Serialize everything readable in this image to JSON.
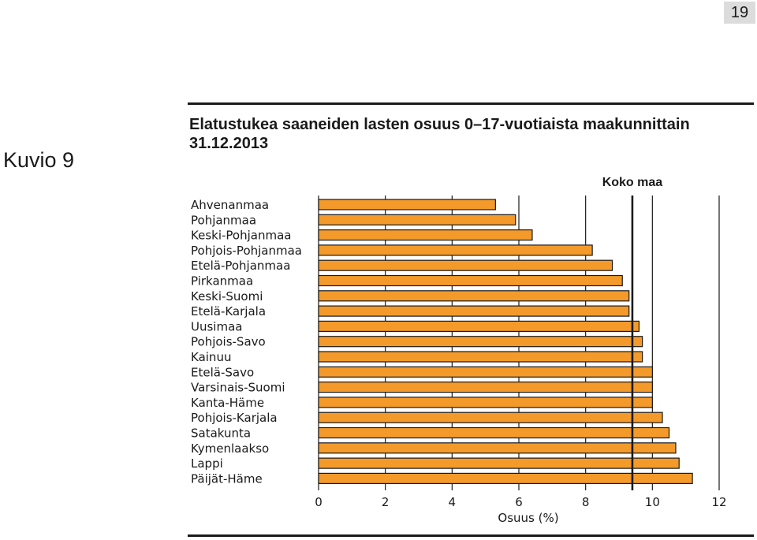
{
  "page_number": "19",
  "figure_label": "Kuvio 9",
  "chart_data": {
    "type": "bar",
    "orientation": "horizontal",
    "title": "Elatustukea saaneiden lasten osuus 0–17-vuotiaista maakunnittain 31.12.2013",
    "xlabel": "Osuus (%)",
    "xlim": [
      0,
      12
    ],
    "xticks": [
      0,
      2,
      4,
      6,
      8,
      10,
      12
    ],
    "grid": true,
    "categories": [
      "Ahvenanmaa",
      "Pohjanmaa",
      "Keski-Pohjanmaa",
      "Pohjois-Pohjanmaa",
      "Etelä-Pohjanmaa",
      "Pirkanmaa",
      "Keski-Suomi",
      "Etelä-Karjala",
      "Uusimaa",
      "Pohjois-Savo",
      "Kainuu",
      "Etelä-Savo",
      "Varsinais-Suomi",
      "Kanta-Häme",
      "Pohjois-Karjala",
      "Satakunta",
      "Kymenlaakso",
      "Lappi",
      "Päijät-Häme"
    ],
    "values": [
      5.3,
      5.9,
      6.4,
      8.2,
      8.8,
      9.1,
      9.3,
      9.3,
      9.6,
      9.7,
      9.7,
      10.0,
      10.0,
      10.0,
      10.3,
      10.5,
      10.7,
      10.8,
      11.2
    ],
    "reference_line": {
      "label": "Koko maa",
      "value": 9.4
    },
    "bar_color": "#f39a2b",
    "bar_edge_color": "#1a1a1a"
  }
}
